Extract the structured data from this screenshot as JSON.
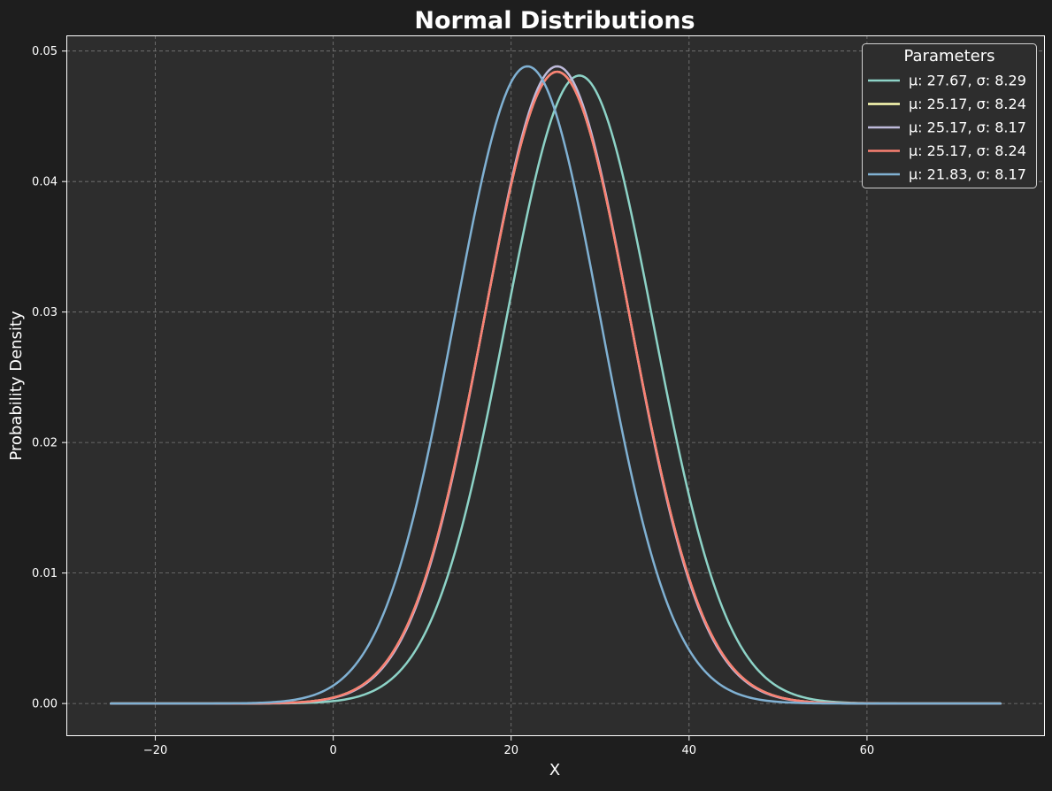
{
  "chart_data": {
    "type": "line",
    "title": "Normal Distributions",
    "xlabel": "X",
    "ylabel": "Probability Density",
    "xlim": [
      -30,
      80
    ],
    "ylim": [
      -0.0025,
      0.0512
    ],
    "x_range": [
      -25,
      75
    ],
    "xticks": [
      -20,
      0,
      20,
      40,
      60
    ],
    "yticks": [
      0.0,
      0.01,
      0.02,
      0.03,
      0.04,
      0.05
    ],
    "x_tick_labels": [
      "−20",
      "0",
      "20",
      "40",
      "60"
    ],
    "y_tick_labels": [
      "0.00",
      "0.01",
      "0.02",
      "0.03",
      "0.04",
      "0.05"
    ],
    "grid": true,
    "legend": {
      "title": "Parameters",
      "placement": "top-right"
    },
    "series": [
      {
        "name": "μ: 27.67, σ: 8.29",
        "mu": 27.67,
        "sigma": 8.29,
        "color": "#8dd3c7"
      },
      {
        "name": "μ: 25.17, σ: 8.24",
        "mu": 25.17,
        "sigma": 8.24,
        "color": "#ffffb3"
      },
      {
        "name": "μ: 25.17, σ: 8.17",
        "mu": 25.17,
        "sigma": 8.17,
        "color": "#bebada"
      },
      {
        "name": "μ: 25.17, σ: 8.24",
        "mu": 25.17,
        "sigma": 8.24,
        "color": "#fa8072"
      },
      {
        "name": "μ: 21.83, σ: 8.17",
        "mu": 21.83,
        "sigma": 8.17,
        "color": "#80b1d3"
      }
    ]
  },
  "colors": {
    "figure_background": "#1e1e1e",
    "plot_background": "#2d2d2d",
    "text": "#ffffff",
    "grid": "#7a7a7a"
  }
}
